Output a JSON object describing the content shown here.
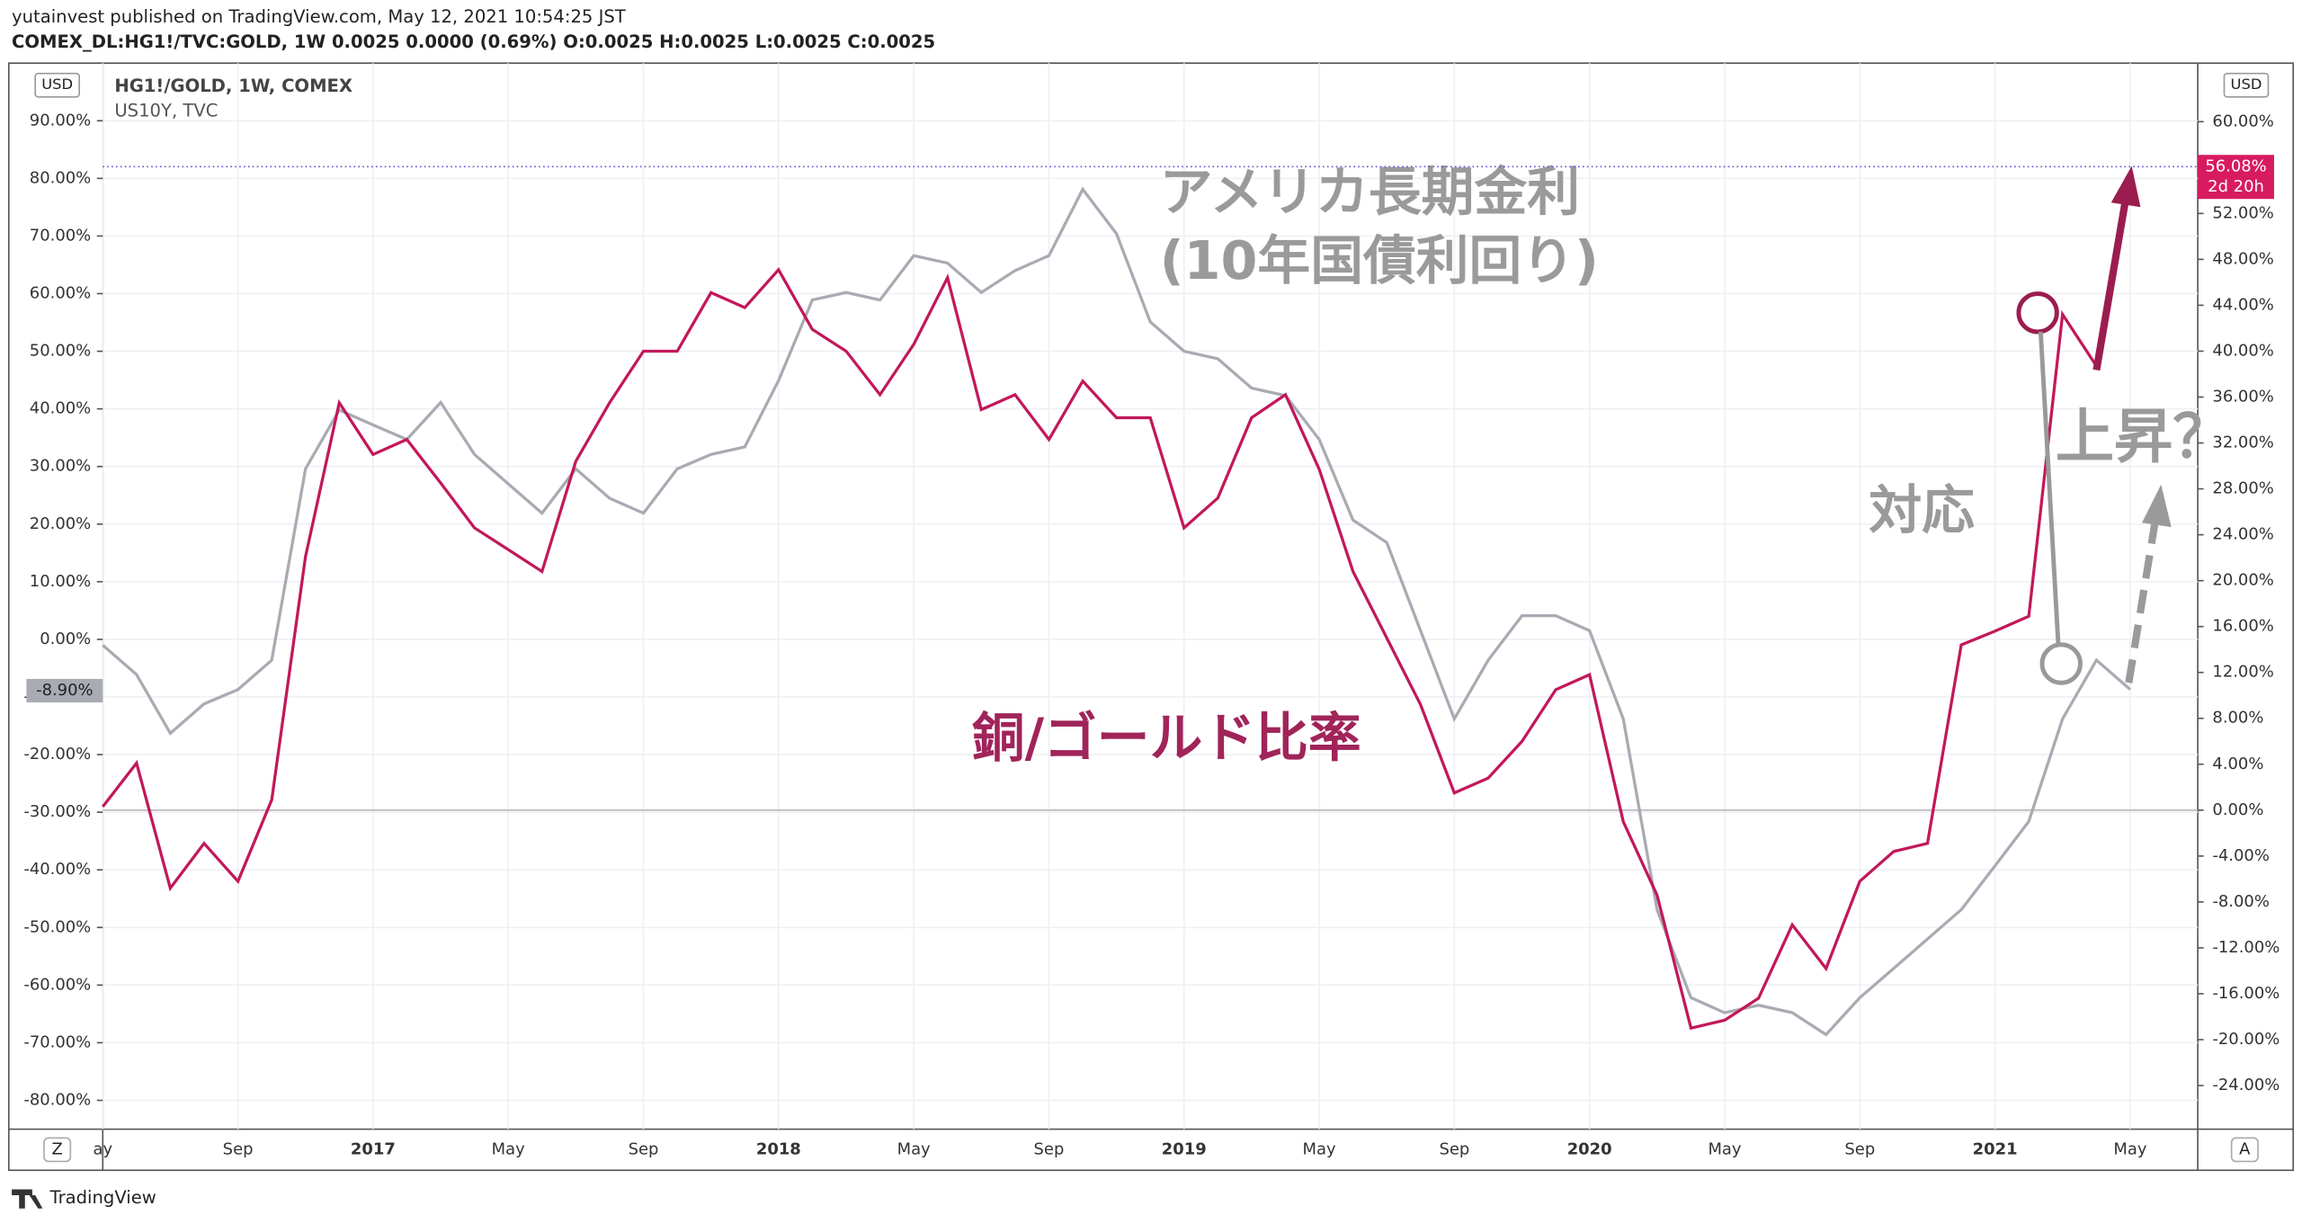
{
  "header": {
    "publisher": "yutainvest published on TradingView.com, May 12, 2021 10:54:25 JST",
    "symbol_line": "COMEX_DL:HG1!/TVC:GOLD, 1W 0.0025 0.0000 (0.69%) O:0.0025 H:0.0025 L:0.0025 C:0.0025"
  },
  "chart_data": {
    "type": "line",
    "x": [
      "2016-05",
      "2016-06",
      "2016-07",
      "2016-08",
      "2016-09",
      "2016-10",
      "2016-11",
      "2016-12",
      "2017-01",
      "2017-02",
      "2017-03",
      "2017-04",
      "2017-05",
      "2017-06",
      "2017-07",
      "2017-08",
      "2017-09",
      "2017-10",
      "2017-11",
      "2017-12",
      "2018-01",
      "2018-02",
      "2018-03",
      "2018-04",
      "2018-05",
      "2018-06",
      "2018-07",
      "2018-08",
      "2018-09",
      "2018-10",
      "2018-11",
      "2018-12",
      "2019-01",
      "2019-02",
      "2019-03",
      "2019-04",
      "2019-05",
      "2019-06",
      "2019-07",
      "2019-08",
      "2019-09",
      "2019-10",
      "2019-11",
      "2019-12",
      "2020-01",
      "2020-02",
      "2020-03",
      "2020-04",
      "2020-05",
      "2020-06",
      "2020-07",
      "2020-08",
      "2020-09",
      "2020-10",
      "2020-11",
      "2020-12",
      "2021-01",
      "2021-02",
      "2021-03",
      "2021-04",
      "2021-05"
    ],
    "series": [
      {
        "name": "HG1!/GOLD, 1W, COMEX",
        "color": "#c2185b",
        "axis": "y2",
        "values": [
          0.3,
          4.1,
          -6.8,
          -2.9,
          -6.2,
          0.9,
          22.1,
          35.5,
          31.0,
          32.3,
          28.5,
          24.6,
          22.7,
          20.8,
          30.4,
          35.5,
          40.0,
          40.0,
          45.1,
          43.8,
          47.1,
          41.9,
          40.0,
          36.2,
          40.6,
          46.4,
          34.9,
          36.2,
          32.3,
          37.4,
          34.2,
          34.2,
          24.6,
          27.2,
          34.2,
          36.2,
          29.7,
          20.8,
          15.0,
          9.2,
          1.5,
          2.8,
          6.0,
          10.5,
          11.8,
          -1.0,
          -7.4,
          -19.0,
          -18.3,
          -16.4,
          -10.0,
          -13.8,
          -6.2,
          -3.6,
          -2.9,
          14.4,
          15.6,
          16.9,
          43.2,
          38.7,
          55.4
        ]
      },
      {
        "name": "US10Y, TVC",
        "color": "#a9abb3",
        "values": [
          -1.0,
          -6.1,
          -16.3,
          -11.2,
          -8.7,
          -3.6,
          29.6,
          39.8,
          37.2,
          34.7,
          41.1,
          32.1,
          27.0,
          21.9,
          29.6,
          24.5,
          21.9,
          29.6,
          32.1,
          33.4,
          44.9,
          58.9,
          60.2,
          58.9,
          66.6,
          65.3,
          60.2,
          64.0,
          66.6,
          78.1,
          70.4,
          55.1,
          50.0,
          48.7,
          43.6,
          42.3,
          34.7,
          20.7,
          16.8,
          1.5,
          -13.8,
          -3.6,
          4.1,
          4.1,
          1.5,
          -13.8,
          -46.9,
          -62.2,
          -64.8,
          -63.5,
          -64.8,
          -68.6,
          -62.2,
          -57.1,
          -52.0,
          -46.9,
          -39.3,
          -31.6,
          -13.8,
          -3.6,
          -8.7
        ]
      }
    ],
    "xlim": [
      "2016-05",
      "2021-07"
    ],
    "xticks": [
      {
        "value": "2016-05",
        "label": "ay"
      },
      {
        "value": "2016-09",
        "label": "Sep"
      },
      {
        "value": "2017-01",
        "label": "2017"
      },
      {
        "value": "2017-05",
        "label": "May"
      },
      {
        "value": "2017-09",
        "label": "Sep"
      },
      {
        "value": "2018-01",
        "label": "2018"
      },
      {
        "value": "2018-05",
        "label": "May"
      },
      {
        "value": "2018-09",
        "label": "Sep"
      },
      {
        "value": "2019-01",
        "label": "2019"
      },
      {
        "value": "2019-05",
        "label": "May"
      },
      {
        "value": "2019-09",
        "label": "Sep"
      },
      {
        "value": "2020-01",
        "label": "2020"
      },
      {
        "value": "2020-05",
        "label": "May"
      },
      {
        "value": "2020-09",
        "label": "Sep"
      },
      {
        "value": "2021-01",
        "label": "2021"
      },
      {
        "value": "2021-05",
        "label": "May"
      }
    ],
    "ylim": [
      -85,
      100
    ],
    "yticks": [
      {
        "value": -80,
        "label": "-80.00%"
      },
      {
        "value": -70,
        "label": "-70.00%"
      },
      {
        "value": -60,
        "label": "-60.00%"
      },
      {
        "value": -50,
        "label": "-50.00%"
      },
      {
        "value": -40,
        "label": "-40.00%"
      },
      {
        "value": -30,
        "label": "-30.00%"
      },
      {
        "value": -20,
        "label": "-20.00%"
      },
      {
        "value": -10,
        "label": "-10.00%"
      },
      {
        "value": 0,
        "label": "0.00%"
      },
      {
        "value": 10,
        "label": "10.00%"
      },
      {
        "value": 20,
        "label": "20.00%"
      },
      {
        "value": 30,
        "label": "30.00%"
      },
      {
        "value": 40,
        "label": "40.00%"
      },
      {
        "value": 50,
        "label": "50.00%"
      },
      {
        "value": 60,
        "label": "60.00%"
      },
      {
        "value": 70,
        "label": "70.00%"
      },
      {
        "value": 80,
        "label": "80.00%"
      },
      {
        "value": 90,
        "label": "90.00%"
      }
    ],
    "y2lim": [
      -27.8,
      65.1
    ],
    "y2ticks": [
      {
        "value": -24,
        "label": "-24.00%"
      },
      {
        "value": -20,
        "label": "-20.00%"
      },
      {
        "value": -16,
        "label": "-16.00%"
      },
      {
        "value": -12,
        "label": "-12.00%"
      },
      {
        "value": -8,
        "label": "-8.00%"
      },
      {
        "value": -4,
        "label": "-4.00%"
      },
      {
        "value": 0,
        "label": "0.00%"
      },
      {
        "value": 4,
        "label": "4.00%"
      },
      {
        "value": 8,
        "label": "8.00%"
      },
      {
        "value": 12,
        "label": "12.00%"
      },
      {
        "value": 16,
        "label": "16.00%"
      },
      {
        "value": 20,
        "label": "20.00%"
      },
      {
        "value": 24,
        "label": "24.00%"
      },
      {
        "value": 28,
        "label": "28.00%"
      },
      {
        "value": 32,
        "label": "32.00%"
      },
      {
        "value": 36,
        "label": "36.00%"
      },
      {
        "value": 40,
        "label": "40.00%"
      },
      {
        "value": 44,
        "label": "44.00%"
      },
      {
        "value": 48,
        "label": "48.00%"
      },
      {
        "value": 52,
        "label": "52.00%"
      },
      {
        "value": 56,
        "label": "56.00%"
      },
      {
        "value": 60,
        "label": "60.00%"
      }
    ],
    "grid": true,
    "last_left": {
      "value": -8.9,
      "label": "-8.90%"
    },
    "last_right": {
      "value": 56.08,
      "label": "56.08%",
      "countdown": "2d 20h"
    },
    "axis_currency": "USD",
    "annotations": {
      "rates_title": "アメリカ長期金利",
      "rates_sub": "(10年国債利回り)",
      "ratio": "銅/ゴールド比率",
      "corr": "対応",
      "rise": "上昇？"
    },
    "buttons": {
      "left": "Z",
      "right": "A"
    },
    "brand": "TradingView"
  }
}
